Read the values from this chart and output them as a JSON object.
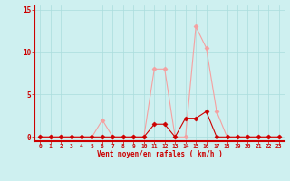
{
  "x": [
    0,
    1,
    2,
    3,
    4,
    5,
    6,
    7,
    8,
    9,
    10,
    11,
    12,
    13,
    14,
    15,
    16,
    17,
    18,
    19,
    20,
    21,
    22,
    23
  ],
  "y_rafales": [
    0,
    0,
    0,
    0,
    0,
    0,
    2,
    0,
    0,
    0,
    0,
    8,
    8,
    0,
    0,
    13,
    10.5,
    3,
    0,
    0,
    0,
    0,
    0,
    0
  ],
  "y_moyen": [
    0,
    0,
    0,
    0,
    0,
    0,
    0,
    0,
    0,
    0,
    0,
    1.5,
    1.5,
    0,
    2.2,
    2.2,
    3,
    0,
    0,
    0,
    0,
    0,
    0,
    0
  ],
  "xlabel": "Vent moyen/en rafales ( km/h )",
  "xlim": [
    -0.5,
    23.5
  ],
  "ylim": [
    -0.5,
    15.5
  ],
  "yticks": [
    0,
    5,
    10,
    15
  ],
  "xticks": [
    0,
    1,
    2,
    3,
    4,
    5,
    6,
    7,
    8,
    9,
    10,
    11,
    12,
    13,
    14,
    15,
    16,
    17,
    18,
    19,
    20,
    21,
    22,
    23
  ],
  "color_rafales": "#f5a0a0",
  "color_moyen": "#cc0000",
  "bg_color": "#cef0f0",
  "grid_color": "#aadddd",
  "tick_color": "#cc0000",
  "label_color": "#cc0000",
  "markersize": 2.5
}
